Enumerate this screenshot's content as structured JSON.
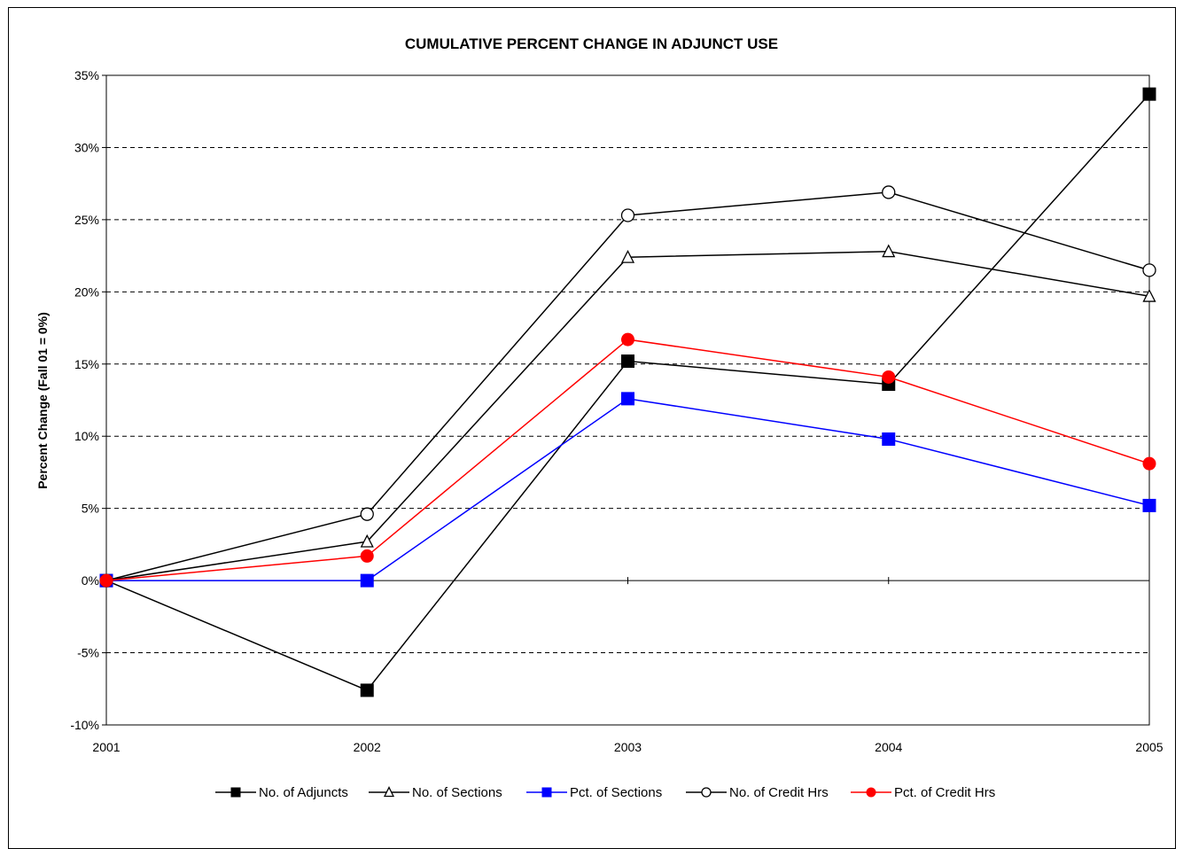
{
  "chart_data": {
    "type": "line",
    "title": "CUMULATIVE PERCENT CHANGE IN ADJUNCT USE",
    "xlabel": "",
    "ylabel": "Percent Change (Fall 01 = 0%)",
    "x": [
      "2001",
      "2002",
      "2003",
      "2004",
      "2005"
    ],
    "ylim": [
      -10,
      35
    ],
    "yticks": [
      -10,
      -5,
      0,
      5,
      10,
      15,
      20,
      25,
      30,
      35
    ],
    "ytick_labels": [
      "-10%",
      "-5%",
      "0%",
      "5%",
      "10%",
      "15%",
      "20%",
      "25%",
      "30%",
      "35%"
    ],
    "grid": "horizontal dashed",
    "legend_position": "bottom",
    "series": [
      {
        "name": "No. of Adjuncts",
        "values": [
          0,
          -7.6,
          15.2,
          13.6,
          33.7
        ],
        "color": "#000000",
        "marker": "square-filled"
      },
      {
        "name": "No. of Sections",
        "values": [
          0,
          2.7,
          22.4,
          22.8,
          19.7
        ],
        "color": "#000000",
        "marker": "triangle-open"
      },
      {
        "name": "Pct. of Sections",
        "values": [
          0,
          0,
          12.6,
          9.8,
          5.2
        ],
        "color": "#0000ff",
        "marker": "square-filled"
      },
      {
        "name": "No. of Credit Hrs",
        "values": [
          0,
          4.6,
          25.3,
          26.9,
          21.5
        ],
        "color": "#000000",
        "marker": "circle-open"
      },
      {
        "name": "Pct. of Credit Hrs",
        "values": [
          0,
          1.7,
          16.7,
          14.1,
          8.1
        ],
        "color": "#ff0000",
        "marker": "circle-filled"
      }
    ]
  }
}
